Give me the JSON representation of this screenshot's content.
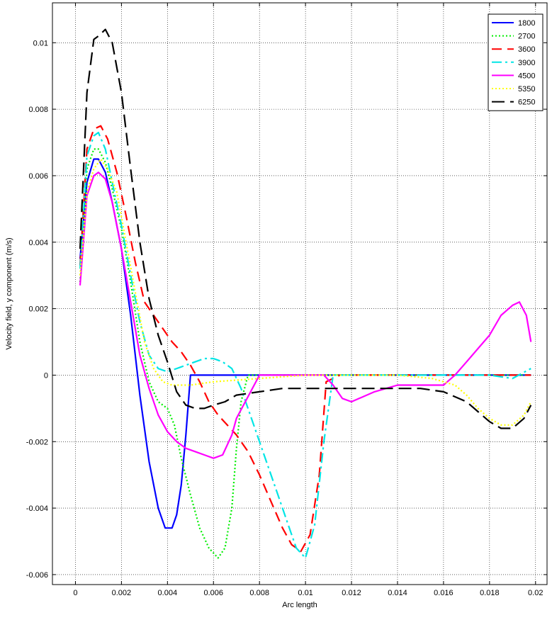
{
  "chart_data": {
    "type": "line",
    "title": "",
    "xlabel": "Arc length",
    "ylabel": "Velocity field, y component (m/s)",
    "xlim": [
      -0.001,
      0.0205
    ],
    "ylim": [
      -0.0063,
      0.0112
    ],
    "grid": true,
    "legend_position": "top-right",
    "xticks": [
      0,
      0.002,
      0.004,
      0.006,
      0.008,
      0.01,
      0.012,
      0.014,
      0.016,
      0.018,
      0.02
    ],
    "xtick_labels": [
      "0",
      "0.002",
      "0.004",
      "0.006",
      "0.008",
      "0.01",
      "0.012",
      "0.014",
      "0.016",
      "0.018",
      "0.02"
    ],
    "yticks": [
      -0.006,
      -0.004,
      -0.002,
      0,
      0.002,
      0.004,
      0.006,
      0.008,
      0.01
    ],
    "ytick_labels": [
      "-0.006",
      "-0.004",
      "-0.002",
      "0",
      "0.002",
      "0.004",
      "0.006",
      "0.008",
      "0.01"
    ],
    "series": [
      {
        "name": "1800",
        "color": "#0000ff",
        "dash": "",
        "x": [
          0.0002,
          0.0005,
          0.0008,
          0.001,
          0.0013,
          0.0016,
          0.002,
          0.0024,
          0.0028,
          0.0032,
          0.0036,
          0.0039,
          0.0042,
          0.0044,
          0.0046,
          0.0048,
          0.005,
          0.0055,
          0.007,
          0.01,
          0.015,
          0.0198
        ],
        "y": [
          0.0035,
          0.0058,
          0.0065,
          0.0065,
          0.0061,
          0.0052,
          0.0038,
          0.0018,
          -0.0006,
          -0.0026,
          -0.004,
          -0.0046,
          -0.0046,
          -0.0042,
          -0.0033,
          -0.0018,
          0.0,
          0.0,
          0.0,
          0.0,
          0.0,
          0.0
        ]
      },
      {
        "name": "2700",
        "color": "#00ee00",
        "dash": "2,3",
        "x": [
          0.0002,
          0.0005,
          0.0008,
          0.001,
          0.0013,
          0.0016,
          0.002,
          0.0024,
          0.0028,
          0.0032,
          0.0036,
          0.004,
          0.0043,
          0.0046,
          0.005,
          0.0054,
          0.0058,
          0.0062,
          0.0065,
          0.0068,
          0.007,
          0.0072,
          0.0075,
          0.0085,
          0.01,
          0.015,
          0.0198
        ],
        "y": [
          0.0028,
          0.0062,
          0.0068,
          0.0068,
          0.0064,
          0.0056,
          0.0044,
          0.0028,
          0.001,
          -0.0002,
          -0.0008,
          -0.001,
          -0.0015,
          -0.0025,
          -0.0036,
          -0.0046,
          -0.0052,
          -0.0055,
          -0.0052,
          -0.004,
          -0.0022,
          -0.0008,
          0.0,
          0.0,
          0.0,
          0.0,
          0.0
        ]
      },
      {
        "name": "3600",
        "color": "#ff0000",
        "dash": "14,8",
        "x": [
          0.0002,
          0.0005,
          0.0008,
          0.0011,
          0.0014,
          0.0018,
          0.0022,
          0.0026,
          0.003,
          0.0034,
          0.0038,
          0.0042,
          0.0046,
          0.005,
          0.0054,
          0.0058,
          0.0062,
          0.0066,
          0.007,
          0.0075,
          0.008,
          0.0085,
          0.009,
          0.0094,
          0.0098,
          0.0102,
          0.0106,
          0.0109,
          0.0115,
          0.015,
          0.0198
        ],
        "y": [
          0.0033,
          0.0068,
          0.0074,
          0.0075,
          0.0071,
          0.0061,
          0.0048,
          0.0034,
          0.0022,
          0.0018,
          0.0014,
          0.001,
          0.0007,
          0.0003,
          -0.0002,
          -0.0008,
          -0.0012,
          -0.0015,
          -0.0018,
          -0.0023,
          -0.003,
          -0.0038,
          -0.0046,
          -0.0051,
          -0.0053,
          -0.0048,
          -0.003,
          -0.0002,
          0.0,
          0.0,
          0.0
        ]
      },
      {
        "name": "3900",
        "color": "#00e5e5",
        "dash": "14,5,3,5",
        "x": [
          0.0002,
          0.0005,
          0.0008,
          0.001,
          0.0013,
          0.0016,
          0.002,
          0.0024,
          0.0028,
          0.0032,
          0.0036,
          0.004,
          0.0044,
          0.0048,
          0.0052,
          0.0056,
          0.006,
          0.0064,
          0.0068,
          0.0072,
          0.0076,
          0.008,
          0.0084,
          0.0088,
          0.0092,
          0.0096,
          0.01,
          0.0104,
          0.0108,
          0.0112,
          0.013,
          0.016,
          0.018,
          0.019,
          0.0198
        ],
        "y": [
          0.0032,
          0.0066,
          0.0072,
          0.0073,
          0.0068,
          0.0058,
          0.0045,
          0.003,
          0.0016,
          0.0006,
          0.0002,
          0.0001,
          0.0002,
          0.0003,
          0.0004,
          0.0005,
          0.0005,
          0.0004,
          0.0002,
          -0.0004,
          -0.0012,
          -0.002,
          -0.0028,
          -0.0036,
          -0.0044,
          -0.0052,
          -0.0055,
          -0.0045,
          -0.002,
          0.0,
          0.0,
          0.0,
          0.0,
          -0.0001,
          0.0002
        ]
      },
      {
        "name": "4500",
        "color": "#ff00ff",
        "dash": "",
        "x": [
          0.0002,
          0.0005,
          0.0008,
          0.001,
          0.0013,
          0.0016,
          0.002,
          0.0024,
          0.0028,
          0.0032,
          0.0036,
          0.004,
          0.0044,
          0.0048,
          0.0052,
          0.0056,
          0.006,
          0.0064,
          0.0068,
          0.007,
          0.008,
          0.01,
          0.0108,
          0.0112,
          0.0116,
          0.012,
          0.013,
          0.014,
          0.015,
          0.016,
          0.0165,
          0.017,
          0.0175,
          0.018,
          0.0185,
          0.019,
          0.0193,
          0.0196,
          0.0198
        ],
        "y": [
          0.0027,
          0.0054,
          0.006,
          0.0061,
          0.0059,
          0.0052,
          0.0038,
          0.0022,
          0.0006,
          -0.0004,
          -0.0012,
          -0.0017,
          -0.002,
          -0.0022,
          -0.0023,
          -0.0024,
          -0.0025,
          -0.0024,
          -0.0018,
          -0.0013,
          0.0,
          0.0,
          0.0,
          -0.0003,
          -0.0007,
          -0.0008,
          -0.0005,
          -0.0003,
          -0.0003,
          -0.0003,
          0.0,
          0.0004,
          0.0008,
          0.0012,
          0.0018,
          0.0021,
          0.0022,
          0.0018,
          0.001
        ]
      },
      {
        "name": "5350",
        "color": "#ffff00",
        "dash": "2,3",
        "x": [
          0.0002,
          0.0005,
          0.0008,
          0.0011,
          0.0014,
          0.0018,
          0.0022,
          0.0026,
          0.003,
          0.0034,
          0.0038,
          0.0042,
          0.005,
          0.006,
          0.008,
          0.01,
          0.012,
          0.014,
          0.0155,
          0.0165,
          0.017,
          0.0175,
          0.018,
          0.0185,
          0.019,
          0.0195,
          0.0198
        ],
        "y": [
          0.003,
          0.0055,
          0.0062,
          0.0065,
          0.0062,
          0.0055,
          0.004,
          0.0025,
          0.001,
          0.0002,
          -0.0002,
          -0.0003,
          -0.0003,
          -0.0002,
          -0.0001,
          0.0,
          0.0,
          0.0,
          -0.0001,
          -0.0003,
          -0.0006,
          -0.001,
          -0.0013,
          -0.0015,
          -0.0015,
          -0.0012,
          -0.0008
        ]
      },
      {
        "name": "6250",
        "color": "#000000",
        "dash": "18,8",
        "x": [
          0.0002,
          0.0005,
          0.0008,
          0.001,
          0.0013,
          0.0016,
          0.002,
          0.0024,
          0.0028,
          0.0032,
          0.0036,
          0.004,
          0.0044,
          0.0048,
          0.0052,
          0.0056,
          0.006,
          0.0065,
          0.007,
          0.008,
          0.009,
          0.01,
          0.011,
          0.012,
          0.013,
          0.014,
          0.015,
          0.016,
          0.017,
          0.0175,
          0.018,
          0.0185,
          0.019,
          0.0195,
          0.0198
        ],
        "y": [
          0.0038,
          0.0085,
          0.0101,
          0.0102,
          0.0104,
          0.01,
          0.0085,
          0.0062,
          0.004,
          0.0023,
          0.0012,
          0.0004,
          -0.0005,
          -0.0009,
          -0.001,
          -0.001,
          -0.0009,
          -0.0008,
          -0.0006,
          -0.0005,
          -0.0004,
          -0.0004,
          -0.0004,
          -0.0004,
          -0.0004,
          -0.0004,
          -0.0004,
          -0.0005,
          -0.0008,
          -0.0011,
          -0.0014,
          -0.0016,
          -0.0016,
          -0.0013,
          -0.0009
        ]
      }
    ]
  }
}
